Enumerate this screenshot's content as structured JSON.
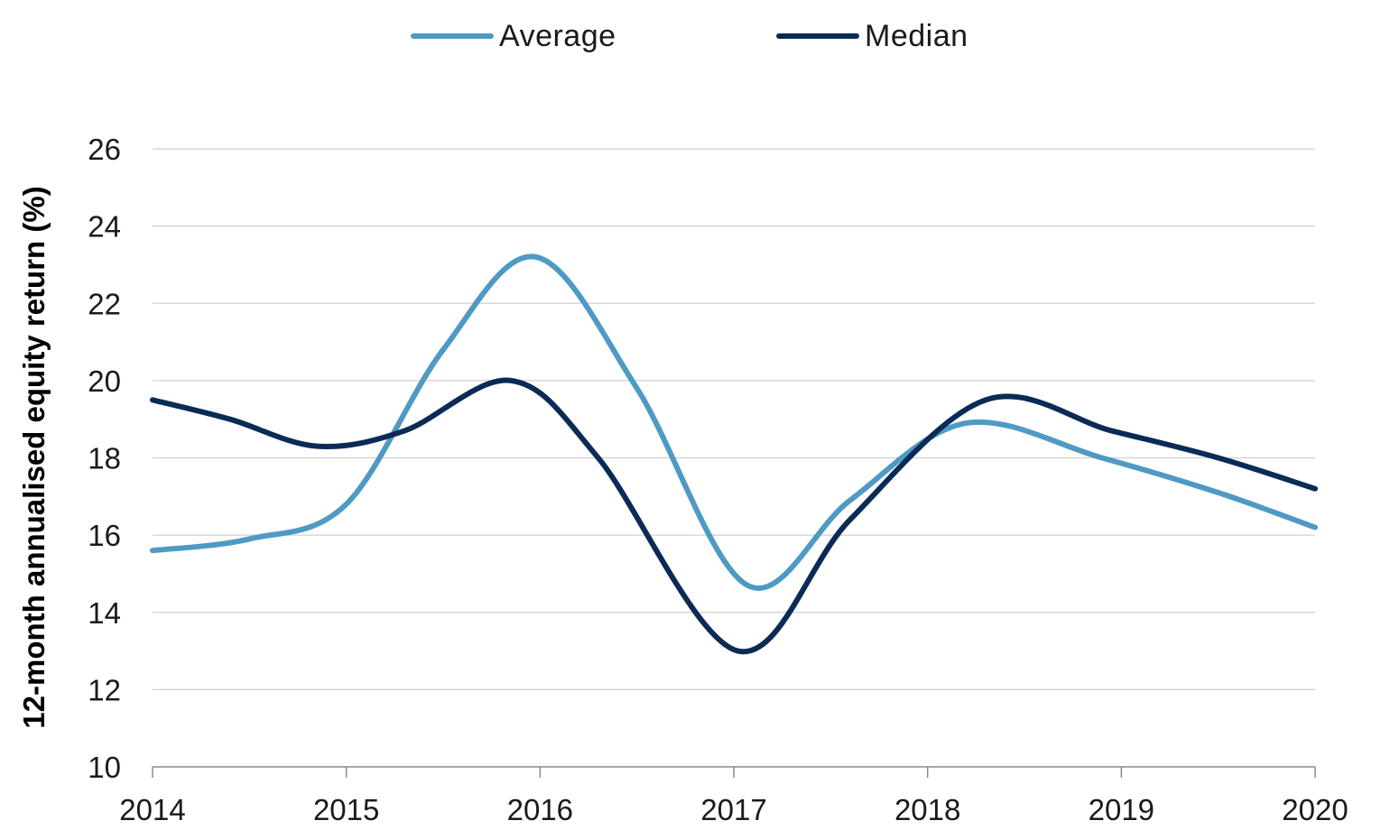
{
  "chart_data": {
    "type": "line",
    "title": "",
    "xlabel": "",
    "ylabel": "12-month annualised equity return (%)",
    "x": [
      2014,
      2015,
      2016,
      2017,
      2018,
      2019,
      2020
    ],
    "x_tick_labels": [
      "2014",
      "2015",
      "2016",
      "2017",
      "2018",
      "2019",
      "2020"
    ],
    "ylim": [
      10,
      26
    ],
    "y_ticks": [
      10,
      12,
      14,
      16,
      18,
      20,
      22,
      24,
      26
    ],
    "grid": "horizontal",
    "legend_position": "top-center",
    "series": [
      {
        "name": "Average",
        "color": "#4f9ac4",
        "x": [
          2014,
          2014.5,
          2015,
          2015.5,
          2015.98,
          2016.5,
          2017.07,
          2017.6,
          2018.2,
          2018.9,
          2019.5,
          2020
        ],
        "values": [
          15.6,
          15.9,
          16.8,
          20.8,
          23.2,
          19.8,
          14.7,
          16.9,
          18.9,
          18.0,
          17.1,
          16.2
        ]
      },
      {
        "name": "Median",
        "color": "#0b2b56",
        "x": [
          2014,
          2014.4,
          2014.85,
          2015.3,
          2015.85,
          2016.3,
          2017.02,
          2017.6,
          2018.3,
          2018.95,
          2019.5,
          2020
        ],
        "values": [
          19.5,
          19.0,
          18.3,
          18.7,
          20.0,
          18.0,
          13.0,
          16.4,
          19.5,
          18.7,
          18.0,
          17.2
        ]
      }
    ]
  }
}
